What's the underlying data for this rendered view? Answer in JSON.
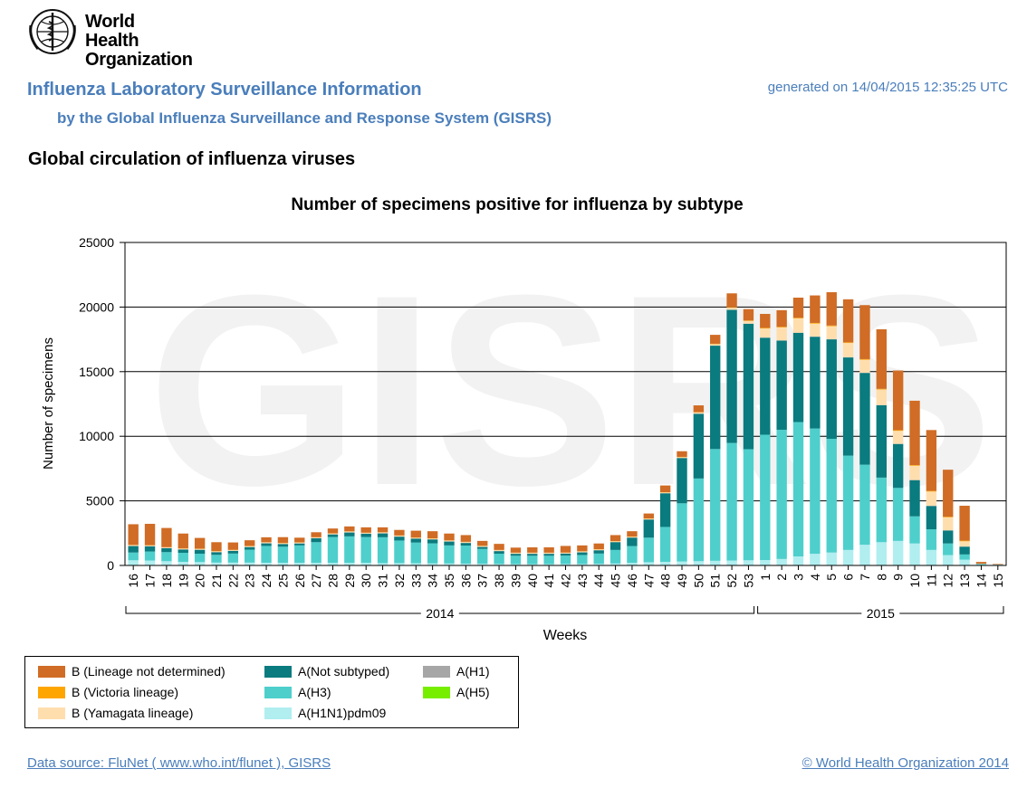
{
  "header": {
    "org_name_line1": "World Health",
    "org_name_line2": "Organization",
    "title": "Influenza Laboratory Surveillance Information",
    "subtitle": "by the Global Influenza Surveillance and Response System (GISRS)",
    "generated": "generated on 14/04/2015 12:35:25 UTC",
    "section_title": "Global circulation of influenza viruses"
  },
  "footer": {
    "source": "Data source: FluNet ( www.who.int/flunet ), GISRS",
    "copyright": "© World Health Organization 2014"
  },
  "watermark": "GISRS",
  "chart_data": {
    "type": "bar",
    "stacked": true,
    "title": "Number of specimens positive for influenza by subtype",
    "xlabel": "Weeks",
    "ylabel": "Number of specimens",
    "ylim": [
      0,
      25000
    ],
    "yticks": [
      0,
      5000,
      10000,
      15000,
      20000,
      25000
    ],
    "grid": true,
    "legend_position": "bottom-left",
    "categories": [
      "16",
      "17",
      "18",
      "19",
      "20",
      "21",
      "22",
      "23",
      "24",
      "25",
      "26",
      "27",
      "28",
      "29",
      "30",
      "31",
      "32",
      "33",
      "34",
      "35",
      "36",
      "37",
      "38",
      "39",
      "40",
      "41",
      "42",
      "43",
      "44",
      "45",
      "46",
      "47",
      "48",
      "49",
      "50",
      "51",
      "52",
      "53",
      "1",
      "2",
      "3",
      "4",
      "5",
      "6",
      "7",
      "8",
      "9",
      "10",
      "11",
      "12",
      "13",
      "14",
      "15"
    ],
    "year_groups": [
      {
        "label": "2014",
        "from": "16",
        "to": "53"
      },
      {
        "label": "2015",
        "from": "1",
        "to": "15"
      }
    ],
    "series": [
      {
        "name": "A(H1N1)pdm09",
        "color": "#b0eef0",
        "values": [
          400,
          380,
          330,
          280,
          260,
          220,
          220,
          220,
          210,
          200,
          200,
          200,
          200,
          200,
          200,
          180,
          180,
          170,
          160,
          150,
          140,
          130,
          110,
          100,
          100,
          100,
          110,
          110,
          120,
          150,
          200,
          250,
          280,
          310,
          330,
          360,
          380,
          400,
          420,
          500,
          700,
          900,
          1000,
          1200,
          1600,
          1800,
          1900,
          1700,
          1200,
          800,
          450,
          50,
          30
        ]
      },
      {
        "name": "A(H3)",
        "color": "#4ecfcc",
        "values": [
          600,
          700,
          700,
          700,
          650,
          600,
          700,
          1000,
          1300,
          1250,
          1350,
          1600,
          2000,
          2050,
          2000,
          2000,
          1750,
          1600,
          1550,
          1400,
          1400,
          1150,
          800,
          650,
          650,
          650,
          650,
          700,
          800,
          1050,
          1300,
          1900,
          2700,
          4500,
          6400,
          8650,
          9100,
          8600,
          9700,
          10000,
          10400,
          9700,
          8800,
          7300,
          6200,
          5000,
          4100,
          2100,
          1600,
          900,
          400,
          50,
          20
        ]
      },
      {
        "name": "A(Not subtyped)",
        "color": "#0a7b7e",
        "values": [
          500,
          400,
          300,
          250,
          300,
          200,
          200,
          200,
          200,
          200,
          150,
          300,
          200,
          300,
          250,
          300,
          300,
          300,
          300,
          300,
          200,
          150,
          200,
          150,
          150,
          150,
          150,
          200,
          250,
          600,
          650,
          1400,
          2600,
          3500,
          5000,
          8000,
          10300,
          9700,
          7500,
          6900,
          6900,
          7100,
          7700,
          7600,
          7100,
          5600,
          3400,
          2800,
          1800,
          1000,
          600,
          20,
          10
        ]
      },
      {
        "name": "A(H1)",
        "color": "#a6a6a6",
        "values": [
          20,
          20,
          20,
          20,
          20,
          20,
          20,
          20,
          20,
          20,
          20,
          20,
          20,
          20,
          20,
          20,
          20,
          20,
          20,
          20,
          20,
          20,
          20,
          20,
          20,
          20,
          20,
          20,
          20,
          20,
          20,
          20,
          20,
          20,
          20,
          20,
          20,
          20,
          20,
          20,
          20,
          20,
          20,
          20,
          20,
          20,
          20,
          20,
          20,
          20,
          20,
          0,
          0
        ]
      },
      {
        "name": "A(H5)",
        "color": "#77ee00",
        "values": [
          0,
          0,
          0,
          0,
          0,
          0,
          0,
          0,
          0,
          0,
          0,
          0,
          0,
          0,
          0,
          0,
          0,
          0,
          0,
          0,
          0,
          0,
          0,
          0,
          0,
          0,
          0,
          0,
          0,
          0,
          0,
          0,
          0,
          0,
          0,
          0,
          0,
          0,
          0,
          0,
          0,
          0,
          0,
          0,
          0,
          0,
          0,
          0,
          0,
          0,
          0,
          0,
          0
        ]
      },
      {
        "name": "B (Yamagata lineage)",
        "color": "#ffdeae",
        "values": [
          50,
          50,
          50,
          50,
          50,
          50,
          50,
          50,
          50,
          50,
          50,
          50,
          50,
          50,
          50,
          50,
          50,
          50,
          50,
          50,
          50,
          50,
          50,
          50,
          50,
          50,
          50,
          50,
          50,
          50,
          50,
          50,
          50,
          50,
          100,
          100,
          150,
          200,
          700,
          1000,
          1100,
          1000,
          1000,
          1100,
          1000,
          1200,
          1000,
          1100,
          1100,
          1000,
          400,
          20,
          10
        ]
      },
      {
        "name": "B (Victoria lineage)",
        "color": "#ffa500",
        "values": [
          20,
          20,
          20,
          20,
          20,
          20,
          20,
          20,
          20,
          20,
          20,
          20,
          20,
          20,
          20,
          20,
          20,
          20,
          20,
          20,
          20,
          20,
          20,
          20,
          20,
          20,
          20,
          20,
          20,
          20,
          20,
          20,
          20,
          20,
          20,
          30,
          30,
          40,
          50,
          50,
          50,
          50,
          50,
          50,
          50,
          50,
          50,
          50,
          50,
          50,
          50,
          0,
          0
        ]
      },
      {
        "name": "B (Lineage not determined)",
        "color": "#d06c25",
        "values": [
          1600,
          1650,
          1480,
          1150,
          830,
          690,
          570,
          440,
          380,
          450,
          360,
          380,
          370,
          380,
          410,
          380,
          430,
          530,
          550,
          530,
          520,
          380,
          470,
          390,
          410,
          410,
          510,
          450,
          440,
          460,
          410,
          380,
          520,
          440,
          520,
          690,
          1080,
          880,
          1080,
          1290,
          1560,
          2130,
          2580,
          3330,
          4180,
          4610,
          4620,
          4980,
          4710,
          3640,
          2700,
          130,
          40
        ]
      }
    ]
  }
}
